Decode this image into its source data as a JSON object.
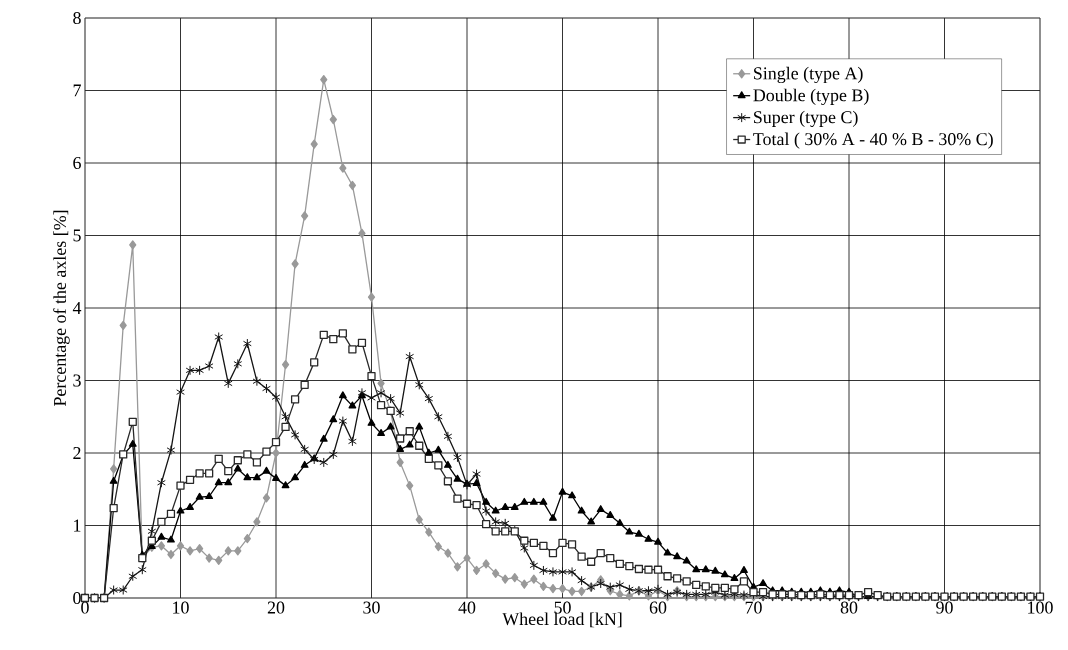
{
  "chart_data": {
    "type": "line",
    "xlabel": "Wheel load [kN]",
    "ylabel": "Percentage of the axles [%]",
    "x": [
      0,
      1,
      2,
      3,
      4,
      5,
      6,
      7,
      8,
      9,
      10,
      11,
      12,
      13,
      14,
      15,
      16,
      17,
      18,
      19,
      20,
      21,
      22,
      23,
      24,
      25,
      26,
      27,
      28,
      29,
      30,
      31,
      32,
      33,
      34,
      35,
      36,
      37,
      38,
      39,
      40,
      41,
      42,
      43,
      44,
      45,
      46,
      47,
      48,
      49,
      50,
      51,
      52,
      53,
      54,
      55,
      56,
      57,
      58,
      59,
      60,
      61,
      62,
      63,
      64,
      65,
      66,
      67,
      68,
      69,
      70,
      71,
      72,
      73,
      74,
      75,
      76,
      77,
      78,
      79,
      80,
      81,
      82,
      83,
      84,
      85,
      86,
      87,
      88,
      89,
      90,
      91,
      92,
      93,
      94,
      95,
      96,
      97,
      98,
      99,
      100
    ],
    "series": [
      {
        "name": "Single (type A)",
        "color": "#999999",
        "marker": "diamond",
        "values": [
          0,
          0,
          0,
          1.78,
          3.76,
          4.87,
          0.55,
          0.7,
          0.72,
          0.6,
          0.72,
          0.65,
          0.68,
          0.55,
          0.52,
          0.65,
          0.65,
          0.82,
          1.05,
          1.38,
          2.0,
          3.22,
          4.61,
          5.27,
          6.26,
          7.15,
          6.6,
          5.93,
          5.69,
          5.03,
          4.15,
          2.96,
          2.58,
          1.87,
          1.55,
          1.08,
          0.91,
          0.71,
          0.62,
          0.43,
          0.55,
          0.38,
          0.47,
          0.34,
          0.26,
          0.28,
          0.19,
          0.26,
          0.16,
          0.13,
          0.13,
          0.09,
          0.09,
          0.15,
          0.25,
          0.1,
          0.05,
          0.03,
          0.1,
          0.03,
          0.1,
          0.02,
          0.1,
          0.02,
          0.02,
          0.02,
          0.02,
          0.02,
          0.02,
          0.02,
          0.02,
          0.02,
          0.02,
          0.02,
          0.02,
          0.02,
          0.02,
          0.02,
          0.02,
          0.02,
          0.02,
          0.02,
          0.02,
          0.02,
          0.02,
          0.02,
          0.02,
          0.02,
          0.02,
          0.02,
          0.02,
          0.02,
          0.02,
          0.02,
          0.02,
          0.02,
          0.02,
          0.02,
          0.02,
          0.02,
          0.02
        ]
      },
      {
        "name": "Double (type B)",
        "color": "#000000",
        "marker": "triangle",
        "values": [
          0,
          0,
          0,
          1.61,
          1.97,
          2.12,
          0.59,
          0.71,
          0.84,
          0.8,
          1.2,
          1.25,
          1.39,
          1.4,
          1.59,
          1.59,
          1.78,
          1.66,
          1.66,
          1.75,
          1.65,
          1.55,
          1.66,
          1.83,
          1.92,
          2.19,
          2.46,
          2.79,
          2.65,
          2.79,
          2.41,
          2.27,
          2.36,
          2.05,
          2.11,
          2.36,
          2.0,
          2.04,
          1.83,
          1.64,
          1.57,
          1.58,
          1.32,
          1.2,
          1.25,
          1.25,
          1.32,
          1.32,
          1.32,
          1.1,
          1.46,
          1.41,
          1.2,
          1.05,
          1.22,
          1.14,
          1.03,
          0.91,
          0.88,
          0.81,
          0.77,
          0.62,
          0.57,
          0.51,
          0.39,
          0.39,
          0.37,
          0.32,
          0.27,
          0.38,
          0.15,
          0.2,
          0.1,
          0.1,
          0.08,
          0.08,
          0.08,
          0.1,
          0.08,
          0.1,
          0.08,
          0.02,
          0.02,
          0.02,
          0.02,
          0.02,
          0.02,
          0.02,
          0.02,
          0.02,
          0.02,
          0.02,
          0.02,
          0.02,
          0.02,
          0.02,
          0.02,
          0.02,
          0.02,
          0.02,
          0.02
        ]
      },
      {
        "name": "Super (type C)",
        "color": "#141414",
        "marker": "cross",
        "values": [
          0,
          0,
          0,
          0.11,
          0.11,
          0.3,
          0.39,
          0.92,
          1.59,
          2.04,
          2.84,
          3.14,
          3.14,
          3.2,
          3.6,
          2.96,
          3.23,
          3.51,
          2.99,
          2.89,
          2.77,
          2.5,
          2.25,
          2.05,
          1.91,
          1.87,
          1.98,
          2.44,
          2.16,
          2.83,
          2.76,
          2.83,
          2.75,
          2.55,
          3.33,
          2.94,
          2.75,
          2.5,
          2.23,
          1.94,
          1.56,
          1.71,
          1.2,
          1.05,
          1.03,
          0.93,
          0.69,
          0.45,
          0.38,
          0.36,
          0.36,
          0.36,
          0.24,
          0.15,
          0.2,
          0.15,
          0.18,
          0.12,
          0.1,
          0.1,
          0.12,
          0.05,
          0.08,
          0.05,
          0.05,
          0.05,
          0.08,
          0.04,
          0.05,
          0.04,
          0.05,
          0.02,
          0.02,
          0.02,
          0.02,
          0.02,
          0.02,
          0.02,
          0.02,
          0.02,
          0.02,
          0.02,
          0.02,
          0.02,
          0.02,
          0.02,
          0.02,
          0.02,
          0.02,
          0.02,
          0.02,
          0.02,
          0.02,
          0.02,
          0.02,
          0.02,
          0.02,
          0.02,
          0.02,
          0.02,
          0.02
        ]
      },
      {
        "name": "Total ( 30% A - 40 % B - 30% C)",
        "color": "#282828",
        "marker": "square",
        "values": [
          0,
          0,
          0,
          1.24,
          1.98,
          2.43,
          0.55,
          0.79,
          1.05,
          1.16,
          1.55,
          1.63,
          1.72,
          1.72,
          1.92,
          1.75,
          1.9,
          1.98,
          1.87,
          2.02,
          2.15,
          2.36,
          2.74,
          2.94,
          3.25,
          3.63,
          3.57,
          3.65,
          3.43,
          3.52,
          3.06,
          2.66,
          2.58,
          2.2,
          2.3,
          2.1,
          1.92,
          1.83,
          1.61,
          1.37,
          1.3,
          1.28,
          1.02,
          0.92,
          0.92,
          0.92,
          0.79,
          0.76,
          0.72,
          0.62,
          0.76,
          0.74,
          0.57,
          0.5,
          0.62,
          0.55,
          0.47,
          0.44,
          0.4,
          0.39,
          0.39,
          0.3,
          0.27,
          0.23,
          0.18,
          0.16,
          0.14,
          0.14,
          0.12,
          0.23,
          0.08,
          0.08,
          0.05,
          0.05,
          0.05,
          0.04,
          0.04,
          0.05,
          0.04,
          0.04,
          0.04,
          0.04,
          0.08,
          0.04,
          0.02,
          0.02,
          0.02,
          0.02,
          0.02,
          0.02,
          0.02,
          0.02,
          0.02,
          0.02,
          0.02,
          0.02,
          0.02,
          0.02,
          0.02,
          0.02,
          0.02
        ]
      }
    ],
    "xlim": [
      0,
      100
    ],
    "xticks": [
      0,
      10,
      20,
      30,
      40,
      50,
      60,
      70,
      80,
      90,
      100
    ],
    "ylim": [
      0,
      8
    ],
    "yticks": [
      0,
      1,
      2,
      3,
      4,
      5,
      6,
      7,
      8
    ],
    "grid": true,
    "legend": "top right",
    "line_style": "solid"
  }
}
